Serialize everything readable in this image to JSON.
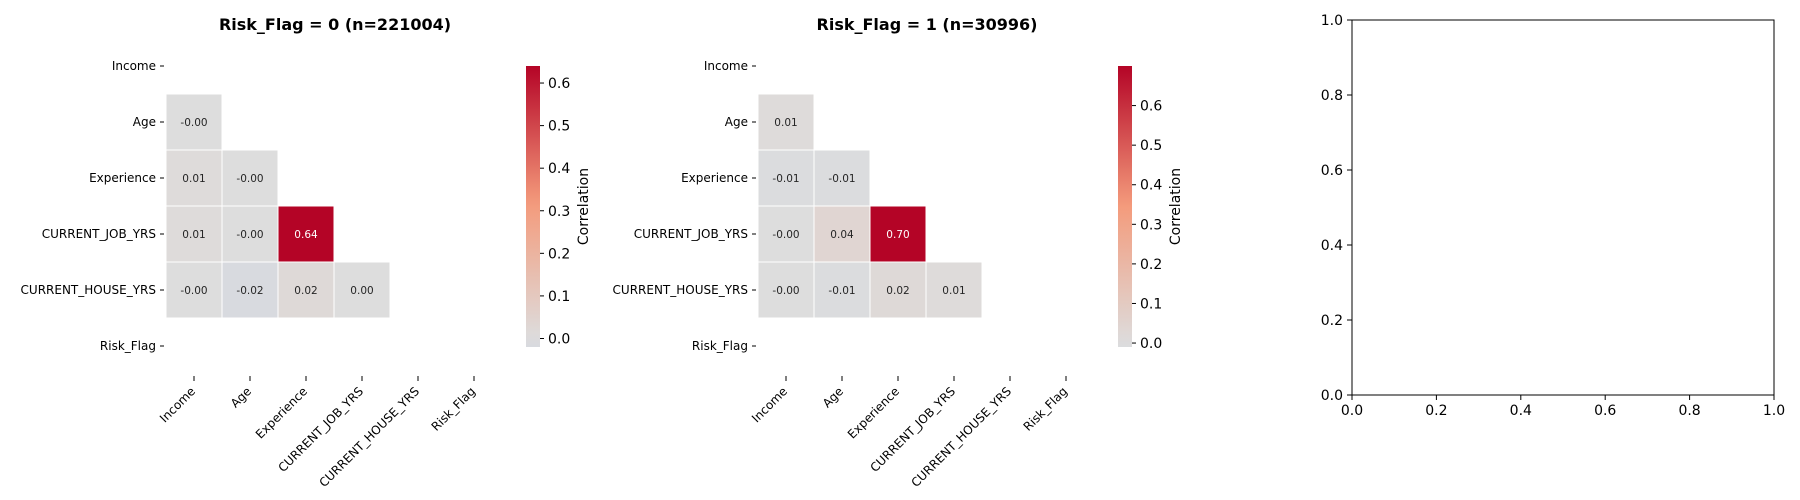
{
  "chart_data": [
    {
      "type": "heatmap",
      "title": "Risk_Flag = 0 (n=221004)",
      "variables": [
        "Income",
        "Age",
        "Experience",
        "CURRENT_JOB_YRS",
        "CURRENT_HOUSE_YRS",
        "Risk_Flag"
      ],
      "mask": "upper-triangle-and-diagonal",
      "cells": [
        {
          "row": "Age",
          "col": "Income",
          "value": -0.0
        },
        {
          "row": "Experience",
          "col": "Income",
          "value": 0.01
        },
        {
          "row": "Experience",
          "col": "Age",
          "value": -0.0
        },
        {
          "row": "CURRENT_JOB_YRS",
          "col": "Income",
          "value": 0.01
        },
        {
          "row": "CURRENT_JOB_YRS",
          "col": "Age",
          "value": -0.0
        },
        {
          "row": "CURRENT_JOB_YRS",
          "col": "Experience",
          "value": 0.64
        },
        {
          "row": "CURRENT_HOUSE_YRS",
          "col": "Income",
          "value": -0.0
        },
        {
          "row": "CURRENT_HOUSE_YRS",
          "col": "Age",
          "value": -0.02
        },
        {
          "row": "CURRENT_HOUSE_YRS",
          "col": "Experience",
          "value": 0.02
        },
        {
          "row": "CURRENT_HOUSE_YRS",
          "col": "CURRENT_JOB_YRS",
          "value": 0.0
        }
      ],
      "colorbar": {
        "label": "Correlation",
        "range": [
          -0.02,
          0.64
        ],
        "ticks": [
          0.0,
          0.1,
          0.2,
          0.3,
          0.4,
          0.5,
          0.6
        ],
        "tick_labels": [
          "0.0",
          "0.1",
          "0.2",
          "0.3",
          "0.4",
          "0.5",
          "0.6"
        ]
      },
      "colormap": "coolwarm",
      "center": 0
    },
    {
      "type": "heatmap",
      "title": "Risk_Flag = 1 (n=30996)",
      "variables": [
        "Income",
        "Age",
        "Experience",
        "CURRENT_JOB_YRS",
        "CURRENT_HOUSE_YRS",
        "Risk_Flag"
      ],
      "mask": "upper-triangle-and-diagonal",
      "cells": [
        {
          "row": "Age",
          "col": "Income",
          "value": 0.01
        },
        {
          "row": "Experience",
          "col": "Income",
          "value": -0.01
        },
        {
          "row": "Experience",
          "col": "Age",
          "value": -0.01
        },
        {
          "row": "CURRENT_JOB_YRS",
          "col": "Income",
          "value": -0.0
        },
        {
          "row": "CURRENT_JOB_YRS",
          "col": "Age",
          "value": 0.04
        },
        {
          "row": "CURRENT_JOB_YRS",
          "col": "Experience",
          "value": 0.7
        },
        {
          "row": "CURRENT_HOUSE_YRS",
          "col": "Income",
          "value": -0.0
        },
        {
          "row": "CURRENT_HOUSE_YRS",
          "col": "Age",
          "value": -0.01
        },
        {
          "row": "CURRENT_HOUSE_YRS",
          "col": "Experience",
          "value": 0.02
        },
        {
          "row": "CURRENT_HOUSE_YRS",
          "col": "CURRENT_JOB_YRS",
          "value": 0.01
        }
      ],
      "colorbar": {
        "label": "Correlation",
        "range": [
          -0.01,
          0.7
        ],
        "ticks": [
          0.0,
          0.1,
          0.2,
          0.3,
          0.4,
          0.5,
          0.6
        ],
        "tick_labels": [
          "0.0",
          "0.1",
          "0.2",
          "0.3",
          "0.4",
          "0.5",
          "0.6"
        ]
      },
      "colormap": "coolwarm",
      "center": 0
    },
    {
      "type": "scatter",
      "title": "",
      "xlim": [
        0.0,
        1.0
      ],
      "ylim": [
        0.0,
        1.0
      ],
      "xticks": [
        0.0,
        0.2,
        0.4,
        0.6,
        0.8,
        1.0
      ],
      "yticks": [
        0.0,
        0.2,
        0.4,
        0.6,
        0.8,
        1.0
      ],
      "xtick_labels": [
        "0.0",
        "0.2",
        "0.4",
        "0.6",
        "0.8",
        "1.0"
      ],
      "ytick_labels": [
        "0.0",
        "0.2",
        "0.4",
        "0.6",
        "0.8",
        "1.0"
      ],
      "series": []
    }
  ]
}
